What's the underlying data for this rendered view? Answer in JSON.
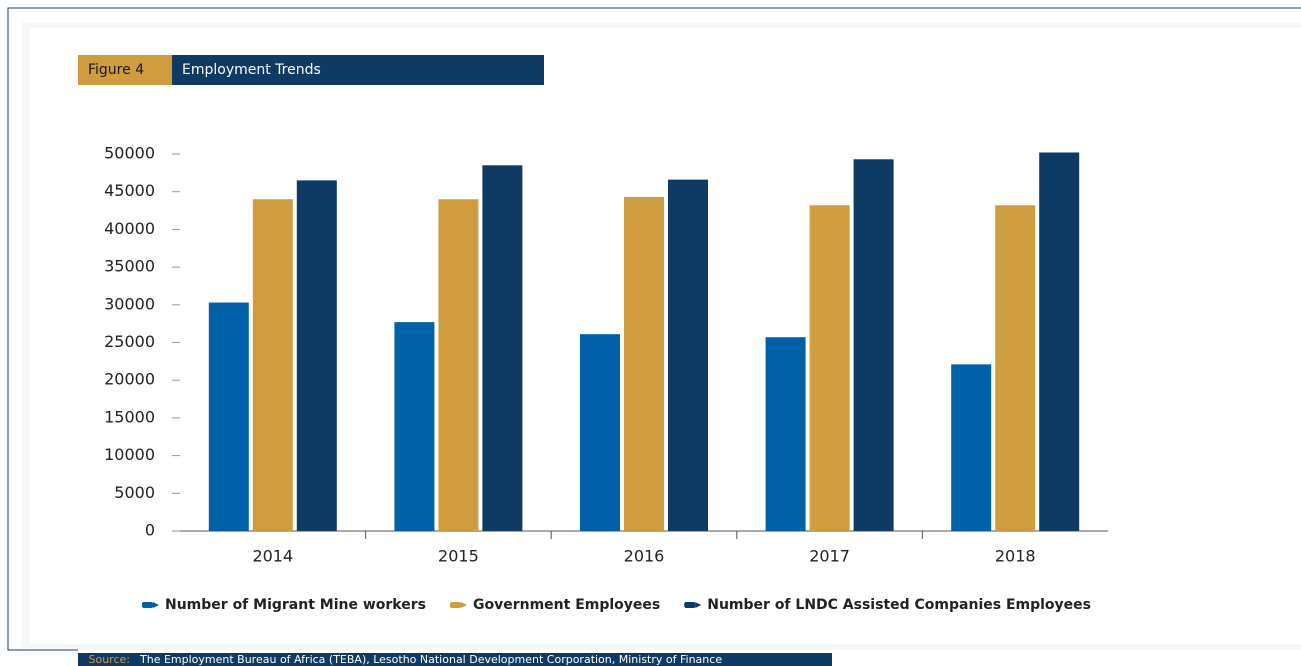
{
  "chart_data": {
    "type": "bar",
    "figure_label": "Figure 4",
    "title": "Employment Trends",
    "categories": [
      "2014",
      "2015",
      "2016",
      "2017",
      "2018"
    ],
    "series": [
      {
        "name": "Number of Migrant Mine workers",
        "color": "#0060a8",
        "values": [
          30300,
          27700,
          26100,
          25700,
          22100
        ]
      },
      {
        "name": "Government Employees",
        "color": "#d09c40",
        "values": [
          44000,
          44000,
          44300,
          43200,
          43200
        ]
      },
      {
        "name": "Number of LNDC Assisted Companies Employees",
        "color": "#0e3a63",
        "values": [
          46500,
          48500,
          46600,
          49300,
          50200
        ]
      }
    ],
    "ylim": [
      0,
      50000
    ],
    "yticks": [
      0,
      5000,
      10000,
      15000,
      20000,
      25000,
      30000,
      35000,
      40000,
      45000,
      50000
    ],
    "grid": false,
    "legend": "bottom",
    "source_label": "Source:",
    "source": "The Employment Bureau of Africa (TEBA), Lesotho National Development Corporation, Ministry of Finance"
  }
}
